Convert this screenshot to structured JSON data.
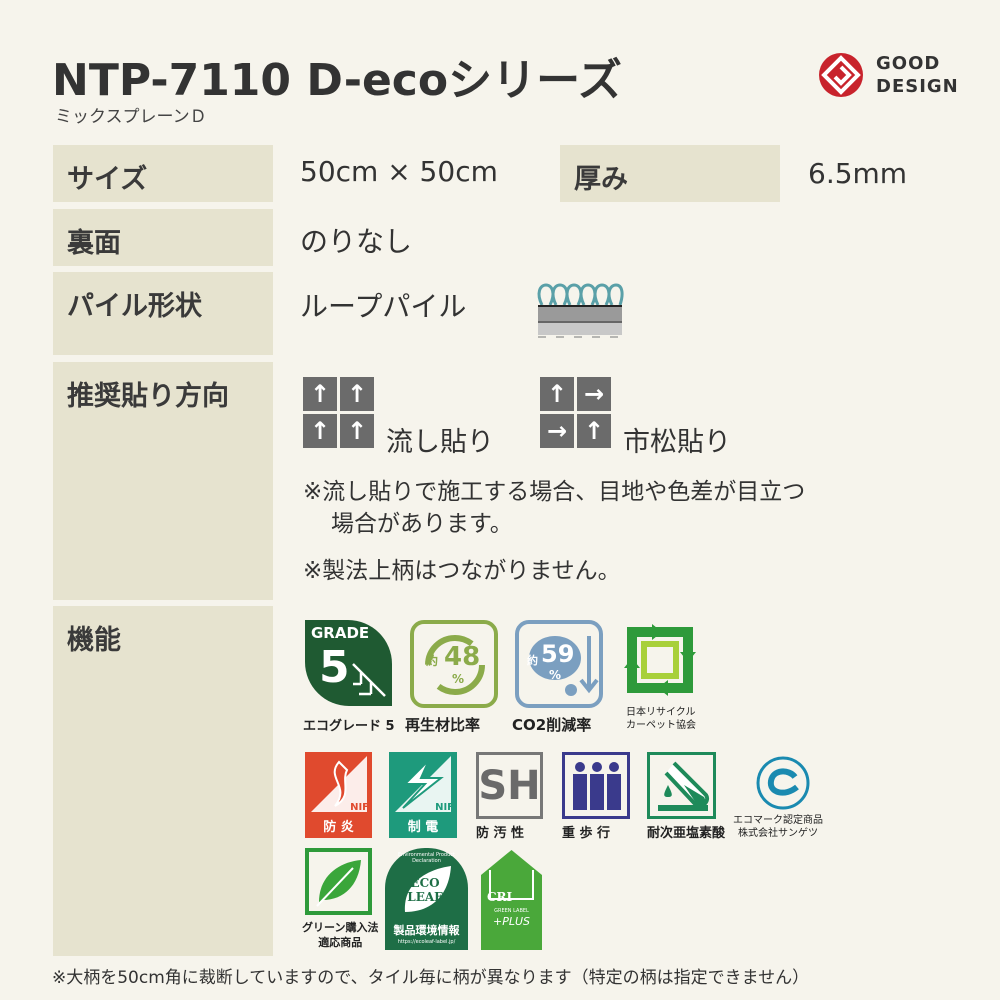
{
  "header": {
    "title": "NTP-7110 D-ecoシリーズ",
    "subtitle": "ミックスプレーンＤ",
    "logo_text_1": "GOOD",
    "logo_text_2": "DESIGN"
  },
  "specs": {
    "size_label": "サイズ",
    "size_value": "50cm × 50cm",
    "thickness_label": "厚み",
    "thickness_value": "6.5mm",
    "back_label": "裏面",
    "back_value": "のりなし",
    "pile_label": "パイル形状",
    "pile_value": "ループパイル",
    "direction_label": "推奨貼り方向",
    "direction_options": [
      {
        "label": "流し貼り",
        "arrows": [
          "↑",
          "↑",
          "↑",
          "↑"
        ]
      },
      {
        "label": "市松貼り",
        "arrows": [
          "↑",
          "→",
          "→",
          "↑"
        ]
      }
    ],
    "notes": [
      "※流し貼りで施工する場合、目地や色差が目立つ",
      "場合があります。",
      "※製法上柄はつながりません。"
    ],
    "function_label": "機能"
  },
  "badges": {
    "grade": {
      "top": "GRADE",
      "num": "5",
      "caption": "エコグレード 5"
    },
    "recycle": {
      "prefix": "約",
      "num": "48",
      "unit": "%",
      "caption": "再生材比率"
    },
    "co2": {
      "prefix": "約",
      "num": "59",
      "unit": "%",
      "caption": "CO2削減率"
    },
    "carpet_assoc": {
      "caption1": "日本リサイクル",
      "caption2": "カーペット協会"
    },
    "fire": {
      "mark": "NIF",
      "caption": "防 炎"
    },
    "antistatic": {
      "mark": "NIF",
      "caption": "制 電"
    },
    "stain": {
      "mark": "SH",
      "caption": "防 汚 性"
    },
    "heavy": {
      "caption": "重 歩 行"
    },
    "chlorine": {
      "caption": "耐次亜塩素酸"
    },
    "ecomark": {
      "caption1": "エコマーク認定商品",
      "caption2": "株式会社サンゲツ"
    },
    "green": {
      "caption1": "グリーン購入法",
      "caption2": "適応商品"
    },
    "ecoleaf": {
      "arc": "Environmental Product Declaration",
      "l1": "ECO",
      "l2": "LEAF",
      "caption": "製品環境情報",
      "url": "https://ecoleaf-label.jp/"
    },
    "cri": {
      "mark": "CRI",
      "l1": "GREEN LABEL",
      "l2": "+PLUS"
    }
  },
  "footer": "※大柄を50cm角に裁断していますので、タイル毎に柄が異なります（特定の柄は指定できません）",
  "colors": {
    "bg": "#f6f4ec",
    "label_bg": "#e6e3cf",
    "fire": "#e04a2e",
    "antistatic": "#1e9a7c",
    "heavy": "#3a3a8c",
    "dark_green": "#1f5a32",
    "recycle": "#8bab4a",
    "co2": "#7b9fc0"
  }
}
